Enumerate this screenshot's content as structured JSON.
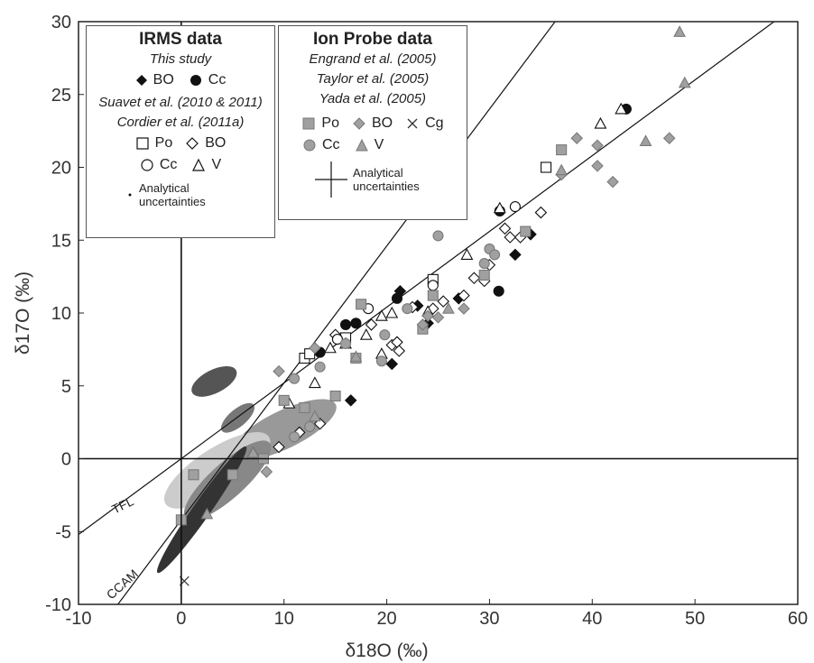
{
  "chart_data": {
    "type": "scatter",
    "xlabel": "δ18O (‰)",
    "ylabel": "δ17O (‰)",
    "xlim": [
      -10,
      60
    ],
    "ylim": [
      -10,
      30
    ],
    "xticks": [
      "-10",
      "0",
      "10",
      "20",
      "30",
      "40",
      "50",
      "60"
    ],
    "yticks": [
      "-10",
      "-5",
      "0",
      "5",
      "10",
      "15",
      "20",
      "25",
      "30"
    ],
    "lines": [
      {
        "label": "TFL",
        "slope": 0.52,
        "intercept": 0
      },
      {
        "label": "CCAM",
        "slope": 0.94,
        "intercept": -4.2
      }
    ],
    "series": [
      {
        "name": "IRMS BO (this study)",
        "marker": "diamond-filled",
        "points": [
          [
            16.5,
            4.0
          ],
          [
            20.5,
            6.5
          ],
          [
            21.3,
            11.5
          ],
          [
            23.0,
            10.5
          ],
          [
            24.0,
            9.3
          ],
          [
            27.0,
            11.0
          ],
          [
            32.5,
            14.0
          ],
          [
            34.0,
            15.4
          ]
        ]
      },
      {
        "name": "IRMS Cc (this study)",
        "marker": "circle-filled",
        "points": [
          [
            13.5,
            7.3
          ],
          [
            16.0,
            9.2
          ],
          [
            17.0,
            9.3
          ],
          [
            21.0,
            11.0
          ],
          [
            30.9,
            11.5
          ],
          [
            31.0,
            17.0
          ],
          [
            43.3,
            24.0
          ]
        ]
      },
      {
        "name": "Po (Suavet/Cordier)",
        "marker": "square-open",
        "points": [
          [
            12.0,
            6.9
          ],
          [
            12.5,
            7.2
          ],
          [
            24.5,
            12.3
          ],
          [
            35.5,
            20.0
          ],
          [
            16.0,
            8.3
          ]
        ]
      },
      {
        "name": "BO (Suavet/Cordier)",
        "marker": "diamond-open",
        "points": [
          [
            9.5,
            0.8
          ],
          [
            11.5,
            1.8
          ],
          [
            13.5,
            2.4
          ],
          [
            20.5,
            7.8
          ],
          [
            21.0,
            8.0
          ],
          [
            21.2,
            7.4
          ],
          [
            22.5,
            10.4
          ],
          [
            24.5,
            10.3
          ],
          [
            25.5,
            10.8
          ],
          [
            27.5,
            11.2
          ],
          [
            28.5,
            12.4
          ],
          [
            29.5,
            12.2
          ],
          [
            30.0,
            13.3
          ],
          [
            31.5,
            15.8
          ],
          [
            32.0,
            15.2
          ],
          [
            33.0,
            15.2
          ],
          [
            35.0,
            16.9
          ],
          [
            15.0,
            8.5
          ],
          [
            18.5,
            9.2
          ]
        ]
      },
      {
        "name": "Cc (Suavet/Cordier)",
        "marker": "circle-open",
        "points": [
          [
            18.2,
            10.3
          ],
          [
            15.2,
            8.2
          ],
          [
            24.5,
            11.9
          ],
          [
            32.5,
            17.3
          ]
        ]
      },
      {
        "name": "V (Suavet/Cordier)",
        "marker": "triangle-open",
        "points": [
          [
            7.0,
            0.4
          ],
          [
            10.5,
            3.8
          ],
          [
            13.0,
            5.2
          ],
          [
            14.5,
            7.6
          ],
          [
            16.0,
            7.9
          ],
          [
            18.0,
            8.5
          ],
          [
            19.5,
            7.2
          ],
          [
            19.5,
            9.8
          ],
          [
            20.5,
            10.0
          ],
          [
            24.0,
            10.1
          ],
          [
            27.8,
            14.0
          ],
          [
            31.0,
            17.2
          ],
          [
            40.8,
            23.0
          ],
          [
            42.8,
            24.0
          ]
        ]
      },
      {
        "name": "Po (Ion probe)",
        "marker": "square-gray",
        "points": [
          [
            0.0,
            -4.2
          ],
          [
            1.2,
            -1.1
          ],
          [
            5.0,
            -1.1
          ],
          [
            8.0,
            0.0
          ],
          [
            10.0,
            4.0
          ],
          [
            12.0,
            3.5
          ],
          [
            15.0,
            4.3
          ],
          [
            17.0,
            6.9
          ],
          [
            17.5,
            10.6
          ],
          [
            23.5,
            8.9
          ],
          [
            24.5,
            11.2
          ],
          [
            29.5,
            12.6
          ],
          [
            33.5,
            15.6
          ],
          [
            37.0,
            21.2
          ]
        ]
      },
      {
        "name": "BO (Ion probe)",
        "marker": "diamond-gray",
        "points": [
          [
            8.3,
            -0.9
          ],
          [
            9.5,
            6.0
          ],
          [
            24.0,
            9.8
          ],
          [
            25.0,
            9.7
          ],
          [
            27.5,
            10.3
          ],
          [
            37.0,
            19.5
          ],
          [
            38.5,
            22.0
          ],
          [
            40.5,
            21.5
          ],
          [
            40.5,
            20.1
          ],
          [
            42.0,
            19.0
          ],
          [
            47.5,
            22.0
          ],
          [
            13.0,
            7.6
          ],
          [
            23.5,
            9.2
          ]
        ]
      },
      {
        "name": "Cg (Ion probe)",
        "marker": "cross",
        "points": [
          [
            0.3,
            -8.4
          ]
        ]
      },
      {
        "name": "Cc (Ion probe)",
        "marker": "circle-gray",
        "points": [
          [
            12.5,
            2.2
          ],
          [
            11.0,
            5.5
          ],
          [
            13.5,
            6.3
          ],
          [
            16.0,
            7.9
          ],
          [
            19.5,
            6.7
          ],
          [
            19.8,
            8.5
          ],
          [
            25.0,
            15.3
          ],
          [
            30.0,
            14.4
          ],
          [
            30.5,
            14.0
          ],
          [
            29.5,
            13.4
          ],
          [
            22.0,
            10.3
          ],
          [
            11.0,
            1.5
          ]
        ]
      },
      {
        "name": "V (Ion probe)",
        "marker": "triangle-gray",
        "points": [
          [
            2.5,
            -3.8
          ],
          [
            7.0,
            0.4
          ],
          [
            13.0,
            2.9
          ],
          [
            17.0,
            7.0
          ],
          [
            26.0,
            10.3
          ],
          [
            37.0,
            19.8
          ],
          [
            45.2,
            21.8
          ],
          [
            48.5,
            29.3
          ],
          [
            49.0,
            25.8
          ]
        ]
      }
    ],
    "ellipses": [
      {
        "cx": 3.2,
        "cy": 5.3,
        "rx": 2.4,
        "ry": 0.8,
        "angle": 27,
        "shade": "#555555"
      },
      {
        "cx": 5.5,
        "cy": 2.8,
        "rx": 2.0,
        "ry": 0.6,
        "angle": 40,
        "shade": "#777777"
      },
      {
        "cx": 10.0,
        "cy": 2.0,
        "rx": 5.6,
        "ry": 1.3,
        "angle": 26,
        "shade": "#999999"
      },
      {
        "cx": 3.5,
        "cy": -0.8,
        "rx": 6.0,
        "ry": 1.5,
        "angle": 33,
        "shade": "#cccccc"
      },
      {
        "cx": 4.5,
        "cy": -1.5,
        "rx": 5.5,
        "ry": 1.2,
        "angle": 42,
        "shade": "#888888"
      },
      {
        "cx": 2.0,
        "cy": -3.5,
        "rx": 7.5,
        "ry": 0.6,
        "angle": 55,
        "shade": "#333333"
      }
    ],
    "labels": {
      "tfl": "TFL",
      "ccam": "CCAM"
    }
  },
  "legend_irms": {
    "title": "IRMS data",
    "subtitle": "This study",
    "row1": [
      "BO",
      "Cc"
    ],
    "ref1": "Suavet et al. (2010 & 2011)",
    "ref2": "Cordier et al. (2011a)",
    "row2": [
      "Po",
      "BO"
    ],
    "row3": [
      "Cc",
      "V"
    ],
    "unc1": "Analytical",
    "unc2": "uncertainties"
  },
  "legend_ion": {
    "title": "Ion Probe data",
    "ref1": "Engrand et al. (2005)",
    "ref2": "Taylor et al. (2005)",
    "ref3": "Yada et al. (2005)",
    "row1": [
      "Po",
      "BO",
      "Cg"
    ],
    "row2": [
      "Cc",
      "V"
    ],
    "unc1": "Analytical",
    "unc2": "uncertainties"
  }
}
